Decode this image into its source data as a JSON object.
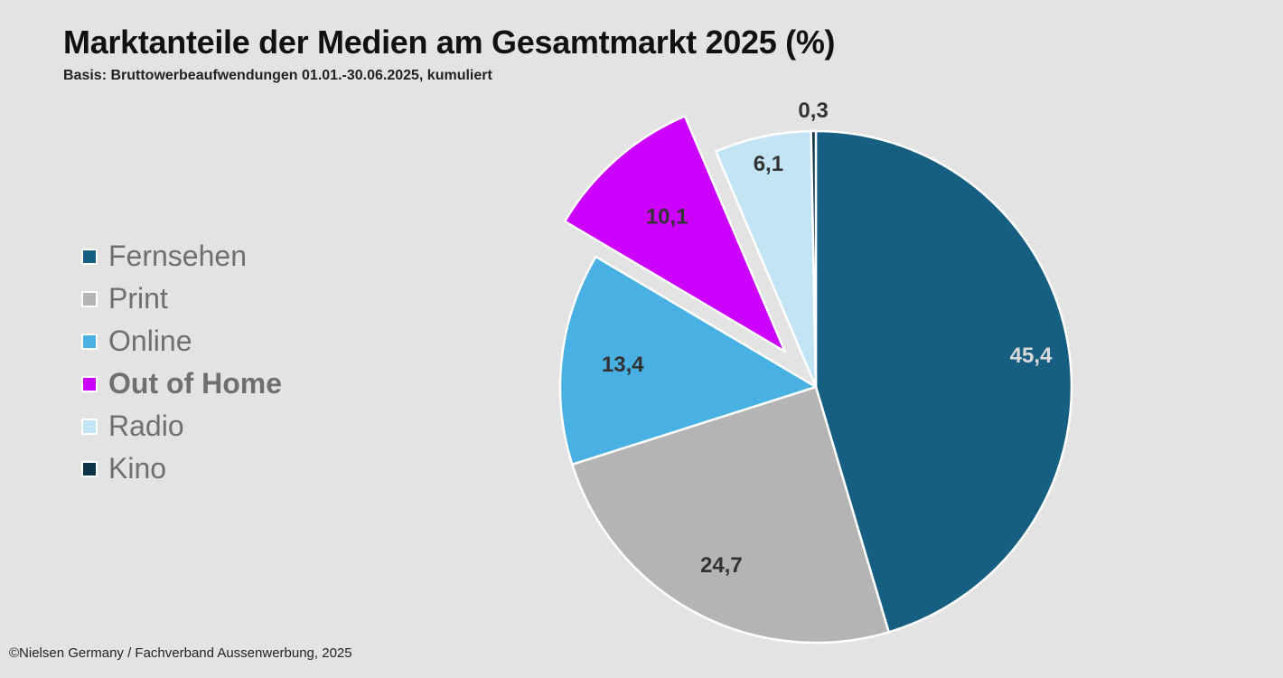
{
  "chart_data": {
    "type": "pie",
    "title": "Marktanteile der Medien am Gesamtmarkt 2025 (%)",
    "subtitle": "Basis: Bruttowerbeaufwendungen 01.01.-30.06.2025, kumuliert",
    "legend_position": "left",
    "slices": [
      {
        "label": "Fernsehen",
        "value": 45.4,
        "display": "45,4",
        "color": "#175f82",
        "label_color": "#d9d9d9",
        "exploded": false,
        "highlight": false
      },
      {
        "label": "Print",
        "value": 24.7,
        "display": "24,7",
        "color": "#b4b4b4",
        "label_color": "#333333",
        "exploded": false,
        "highlight": false
      },
      {
        "label": "Online",
        "value": 13.4,
        "display": "13,4",
        "color": "#48b0e2",
        "label_color": "#333333",
        "exploded": false,
        "highlight": false
      },
      {
        "label": "Out of Home",
        "value": 10.1,
        "display": "10,1",
        "color": "#cc00ff",
        "label_color": "#333333",
        "exploded": true,
        "highlight": true
      },
      {
        "label": "Radio",
        "value": 6.1,
        "display": "6,1",
        "color": "#c2e4f5",
        "label_color": "#333333",
        "exploded": false,
        "highlight": false
      },
      {
        "label": "Kino",
        "value": 0.3,
        "display": "0,3",
        "color": "#0d3346",
        "label_color": "#333333",
        "exploded": false,
        "highlight": false
      }
    ]
  },
  "footer": "©Nielsen Germany / Fachverband Aussenwerbung, 2025"
}
